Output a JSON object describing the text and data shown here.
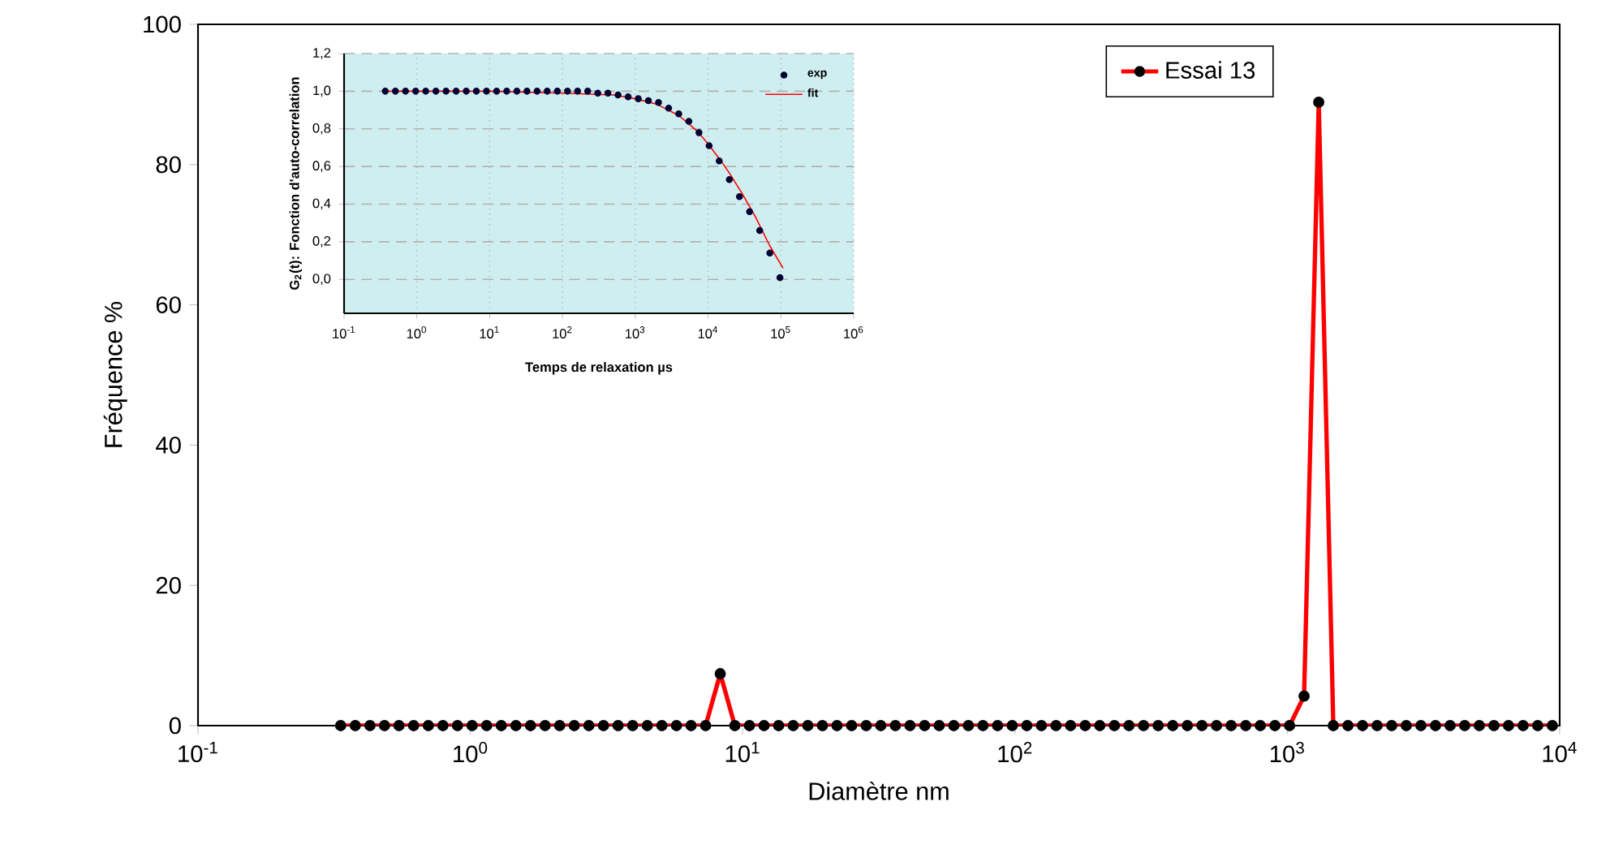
{
  "chart_data": [
    {
      "type": "line",
      "xlabel": "Diamètre nm",
      "ylabel": "Fréquence %",
      "log": "x",
      "xlim": [
        0.1,
        10000
      ],
      "ylim": [
        0,
        100
      ],
      "xticks": [
        {
          "value": 0.1,
          "label": "10$^{-1}$"
        },
        {
          "value": 1,
          "label": "10$^{0}$"
        },
        {
          "value": 10,
          "label": "10$^{1}$"
        },
        {
          "value": 100,
          "label": "10$^{2}$"
        },
        {
          "value": 1000,
          "label": "10$^{3}$"
        },
        {
          "value": 10000,
          "label": "10$^{4}$"
        }
      ],
      "yticks": [
        0,
        20,
        40,
        60,
        80,
        100
      ],
      "legend": "top right",
      "marker": "circle",
      "series": [
        {
          "name": "Essai 13",
          "color": "#ff0000",
          "x": [
            0.334,
            0.378,
            0.428,
            0.484,
            0.547,
            0.619,
            0.701,
            0.793,
            0.897,
            1.015,
            1.148,
            1.299,
            1.47,
            1.663,
            1.881,
            2.128,
            2.408,
            2.724,
            3.083,
            3.487,
            3.945,
            4.464,
            5.05,
            5.713,
            6.463,
            7.311,
            8.273,
            9.359,
            10.59,
            11.98,
            13.55,
            15.33,
            17.35,
            19.63,
            22.2,
            25.12,
            28.42,
            32.15,
            36.37,
            41.15,
            46.56,
            52.67,
            59.59,
            67.42,
            76.28,
            86.3,
            97.63,
            110.5,
            125,
            141.4,
            160,
            181,
            204.8,
            231.7,
            262.1,
            296.5,
            335.5,
            379.6,
            429.4,
            485.8,
            549.5,
            621.7,
            703.4,
            795.8,
            900.4,
            1019,
            1152,
            1304,
            1475,
            1669,
            1888,
            2136,
            2417,
            2734,
            3094,
            3500,
            3960,
            4480,
            5069,
            5735,
            6488,
            7341,
            8305,
            9397
          ],
          "values": [
            0,
            0,
            0,
            0,
            0,
            0,
            0,
            0,
            0,
            0,
            0,
            0,
            0,
            0,
            0,
            0,
            0,
            0,
            0,
            0,
            0,
            0,
            0,
            0,
            0,
            0,
            7.4,
            0,
            0,
            0,
            0,
            0,
            0,
            0,
            0,
            0,
            0,
            0,
            0,
            0,
            0,
            0,
            0,
            0,
            0,
            0,
            0,
            0,
            0,
            0,
            0,
            0,
            0,
            0,
            0,
            0,
            0,
            0,
            0,
            0,
            0,
            0,
            0,
            0,
            0,
            0,
            4.2,
            88.9,
            0,
            0,
            0,
            0,
            0,
            0,
            0,
            0,
            0,
            0,
            0,
            0,
            0,
            0,
            0,
            0
          ]
        }
      ]
    },
    {
      "type": "line",
      "xlabel": "Temps de relaxation µs",
      "ylabel": "G$_{2}$(t): Fonction d'auto-correlation",
      "log": "x",
      "xlim": [
        0.1,
        1000000
      ],
      "ylim": [
        -0.18,
        1.2
      ],
      "xticks": [
        {
          "value": 0.1,
          "label": "10$^{-1}$"
        },
        {
          "value": 1,
          "label": "10$^{0}$"
        },
        {
          "value": 10,
          "label": "10$^{1}$"
        },
        {
          "value": 100,
          "label": "10$^{2}$"
        },
        {
          "value": 1000,
          "label": "10$^{3}$"
        },
        {
          "value": 10000,
          "label": "10$^{4}$"
        },
        {
          "value": 100000,
          "label": "10$^{5}$"
        },
        {
          "value": 1000000,
          "label": "10$^{6}$"
        }
      ],
      "yticks": [
        {
          "value": 0,
          "label": "0,0"
        },
        {
          "value": 0.2,
          "label": "0,2"
        },
        {
          "value": 0.4,
          "label": "0,4"
        },
        {
          "value": 0.6,
          "label": "0,6"
        },
        {
          "value": 0.8,
          "label": "0,8"
        },
        {
          "value": 1.0,
          "label": "1,0"
        },
        {
          "value": 1.2,
          "label": "1,2"
        }
      ],
      "grid": true,
      "legend": "top right",
      "marker": "circle",
      "series": [
        {
          "name": "exp",
          "type": "scatter",
          "color": "#000033",
          "x": [
            0.368,
            0.507,
            0.698,
            0.962,
            1.324,
            1.824,
            2.512,
            3.459,
            4.764,
            6.561,
            9.036,
            12.45,
            17.14,
            23.61,
            32.51,
            44.77,
            61.66,
            84.92,
            117,
            161.1,
            221.8,
            305.5,
            420.7,
            579.4,
            798,
            1099,
            1514,
            2084,
            2871,
            3954,
            5445,
            7499,
            10330,
            14220,
            19590,
            26980,
            37150,
            51170,
            70470,
            97050
          ],
          "values": [
            1.0,
            1.0,
            1.0,
            1.0,
            1.0,
            1.0,
            1.0,
            1.0,
            1.0,
            1.0,
            1.0,
            1.0,
            1.0,
            1.0,
            1.0,
            1.0,
            1.0,
            1.0,
            1.0,
            1.0,
            1.0,
            0.99,
            0.99,
            0.98,
            0.97,
            0.96,
            0.95,
            0.94,
            0.91,
            0.88,
            0.84,
            0.78,
            0.71,
            0.63,
            0.53,
            0.44,
            0.36,
            0.26,
            0.14,
            0.01
          ]
        },
        {
          "name": "fit",
          "type": "line",
          "marker": "none",
          "color": "#ff0000",
          "x": [
            0.37,
            10,
            100,
            500,
            1000,
            2000,
            4000,
            7000,
            10000,
            15000,
            20000,
            30000,
            45000,
            70000,
            107000
          ],
          "values": [
            1.0,
            1.0,
            0.99,
            0.98,
            0.96,
            0.93,
            0.87,
            0.79,
            0.72,
            0.63,
            0.56,
            0.45,
            0.33,
            0.18,
            0.06
          ]
        }
      ]
    }
  ]
}
